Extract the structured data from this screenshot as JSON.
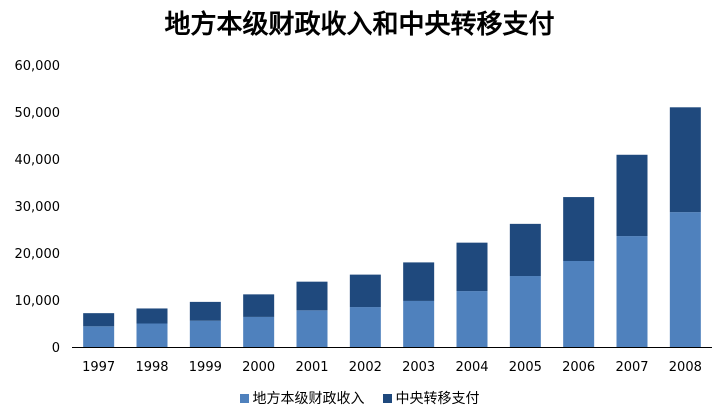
{
  "chart_data": {
    "type": "bar",
    "stacked": true,
    "title": "地方本级财政收入和中央转移支付",
    "xlabel": "",
    "ylabel": "",
    "categories": [
      "1997",
      "1998",
      "1999",
      "2000",
      "2001",
      "2002",
      "2003",
      "2004",
      "2005",
      "2006",
      "2007",
      "2008"
    ],
    "y_tick_labels": [
      "0",
      "10,000",
      "20,000",
      "30,000",
      "40,000",
      "50,000",
      "60,000"
    ],
    "y_ticks": [
      0,
      10000,
      20000,
      30000,
      40000,
      50000,
      60000
    ],
    "ylim": [
      0,
      60000
    ],
    "grid": false,
    "legend_position": "bottom",
    "series": [
      {
        "name": "地方本级财政收入",
        "color": "#4f81bd",
        "values": [
          4400,
          5000,
          5600,
          6400,
          7800,
          8500,
          9800,
          11900,
          15100,
          18300,
          23600,
          28700
        ]
      },
      {
        "name": "中央转移支付",
        "color": "#1f497d",
        "values": [
          2800,
          3200,
          4000,
          4800,
          6100,
          6900,
          8200,
          10300,
          11100,
          13600,
          17300,
          22300
        ]
      }
    ]
  }
}
